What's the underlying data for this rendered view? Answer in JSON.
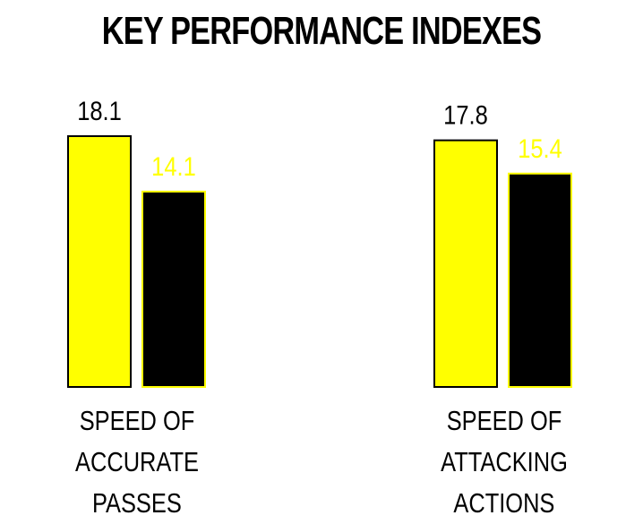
{
  "chart_data": {
    "type": "bar",
    "title": "KEY PERFORMANCE INDEXES",
    "categories": [
      [
        "SPEED OF ACCURATE",
        "PASSES"
      ],
      [
        "SPEED OF ATTACKING",
        "ACTIONS"
      ]
    ],
    "series": [
      {
        "values": [
          18.1,
          17.8
        ],
        "color": "#ffff00",
        "label_color": "#000000"
      },
      {
        "values": [
          14.1,
          15.4
        ],
        "color": "#000000",
        "label_color": "#ffff00"
      }
    ],
    "ylim": [
      0,
      20
    ],
    "grid": false,
    "legend": "none"
  }
}
